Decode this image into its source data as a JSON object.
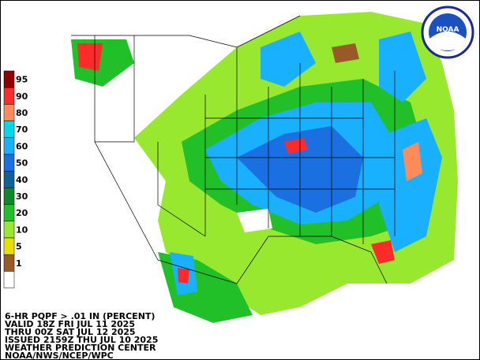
{
  "legend": {
    "labels": [
      "95",
      "90",
      "80",
      "70",
      "60",
      "50",
      "40",
      "30",
      "20",
      "10",
      "5",
      "1"
    ],
    "colors": [
      "#900000",
      "#ff2a2a",
      "#ff8a5a",
      "#00d8e8",
      "#18b0ff",
      "#1a70e0",
      "#10609a",
      "#0a8a2a",
      "#22c028",
      "#98e830",
      "#e8e000",
      "#9a5a28",
      "#ffffff"
    ]
  },
  "logo": {
    "text": "NOAA"
  },
  "footer": {
    "lines": [
      "6-HR PQPF > .01 IN (PERCENT)",
      "VALID 18Z FRI JUL 11 2025",
      "THRU 00Z SAT JUL 12 2025",
      "ISSUED 2159Z THU JUL 10 2025",
      "WEATHER PREDICTION CENTER",
      "NOAA/NWS/NCEP/WPC"
    ]
  }
}
